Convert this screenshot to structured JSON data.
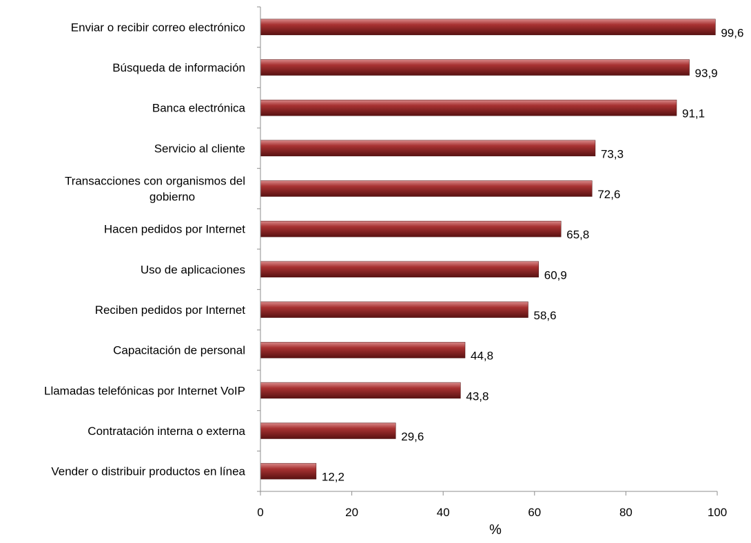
{
  "chart_data": {
    "type": "bar",
    "orientation": "horizontal",
    "categories": [
      "Enviar o recibir correo electrónico",
      "Búsqueda de información",
      "Banca electrónica",
      "Servicio al cliente",
      "Transacciones con organismos del gobierno",
      "Hacen pedidos por Internet",
      "Uso de aplicaciones",
      "Reciben pedidos por Internet",
      "Capacitación de personal",
      "Llamadas telefónicas por Internet VoIP",
      "Contratación interna o externa",
      "Vender o distribuir productos en línea"
    ],
    "category_lines": [
      [
        "Enviar o recibir correo electrónico"
      ],
      [
        "Búsqueda de información"
      ],
      [
        "Banca electrónica"
      ],
      [
        "Servicio al cliente"
      ],
      [
        "Transacciones con organismos del",
        "gobierno"
      ],
      [
        "Hacen pedidos por Internet"
      ],
      [
        "Uso de aplicaciones"
      ],
      [
        "Reciben pedidos por Internet"
      ],
      [
        "Capacitación de personal"
      ],
      [
        "Llamadas telefónicas por Internet VoIP"
      ],
      [
        "Contratación interna o externa"
      ],
      [
        "Vender o distribuir productos en línea"
      ]
    ],
    "values": [
      99.6,
      93.9,
      91.1,
      73.3,
      72.6,
      65.8,
      60.9,
      58.6,
      44.8,
      43.8,
      29.6,
      12.2
    ],
    "data_labels": [
      "99,6",
      "93,9",
      "91,1",
      "73,3",
      "72,6",
      "65,8",
      "60,9",
      "58,6",
      "44,8",
      "43,8",
      "29,6",
      "12,2"
    ],
    "x_ticks": [
      0,
      20,
      40,
      60,
      80,
      100
    ],
    "x_tick_labels": [
      "0",
      "20",
      "40",
      "60",
      "80",
      "100"
    ],
    "xlim": [
      0,
      100
    ],
    "xlabel": "%",
    "ylabel": "",
    "title": "",
    "grid": false,
    "legend": "none",
    "bar_color": "#9b2a2a"
  }
}
